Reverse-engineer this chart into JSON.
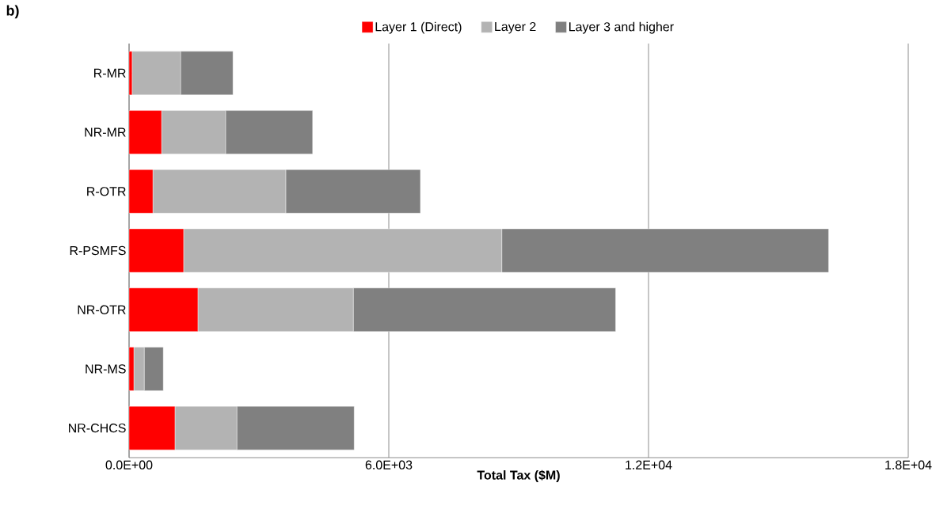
{
  "chart_data": {
    "type": "bar",
    "orientation": "horizontal",
    "stacked": true,
    "title": "b)",
    "xlabel": "Total Tax ($M)",
    "categories": [
      "R-MR",
      "NR-MR",
      "R-OTR",
      "R-PSMFS",
      "NR-OTR",
      "NR-MS",
      "NR-CHCS"
    ],
    "series": [
      {
        "name": "Layer 1 (Direct)",
        "color": "#ff0000",
        "values": [
          70,
          750,
          550,
          1260,
          1590,
          110,
          1060
        ]
      },
      {
        "name": "Layer 2",
        "color": "#b3b3b3",
        "values": [
          1120,
          1480,
          3070,
          7350,
          3590,
          240,
          1430
        ]
      },
      {
        "name": "Layer 3 and higher",
        "color": "#808080",
        "values": [
          1210,
          2010,
          3110,
          7550,
          6060,
          440,
          2710
        ]
      }
    ],
    "xlim": [
      0,
      18000
    ],
    "xticks": [
      {
        "value": 0,
        "label": "0.0E+00"
      },
      {
        "value": 6000,
        "label": "6.0E+03"
      },
      {
        "value": 12000,
        "label": "1.2E+04"
      },
      {
        "value": 18000,
        "label": "1.8E+04"
      }
    ],
    "grid": "x",
    "legend": "top"
  }
}
